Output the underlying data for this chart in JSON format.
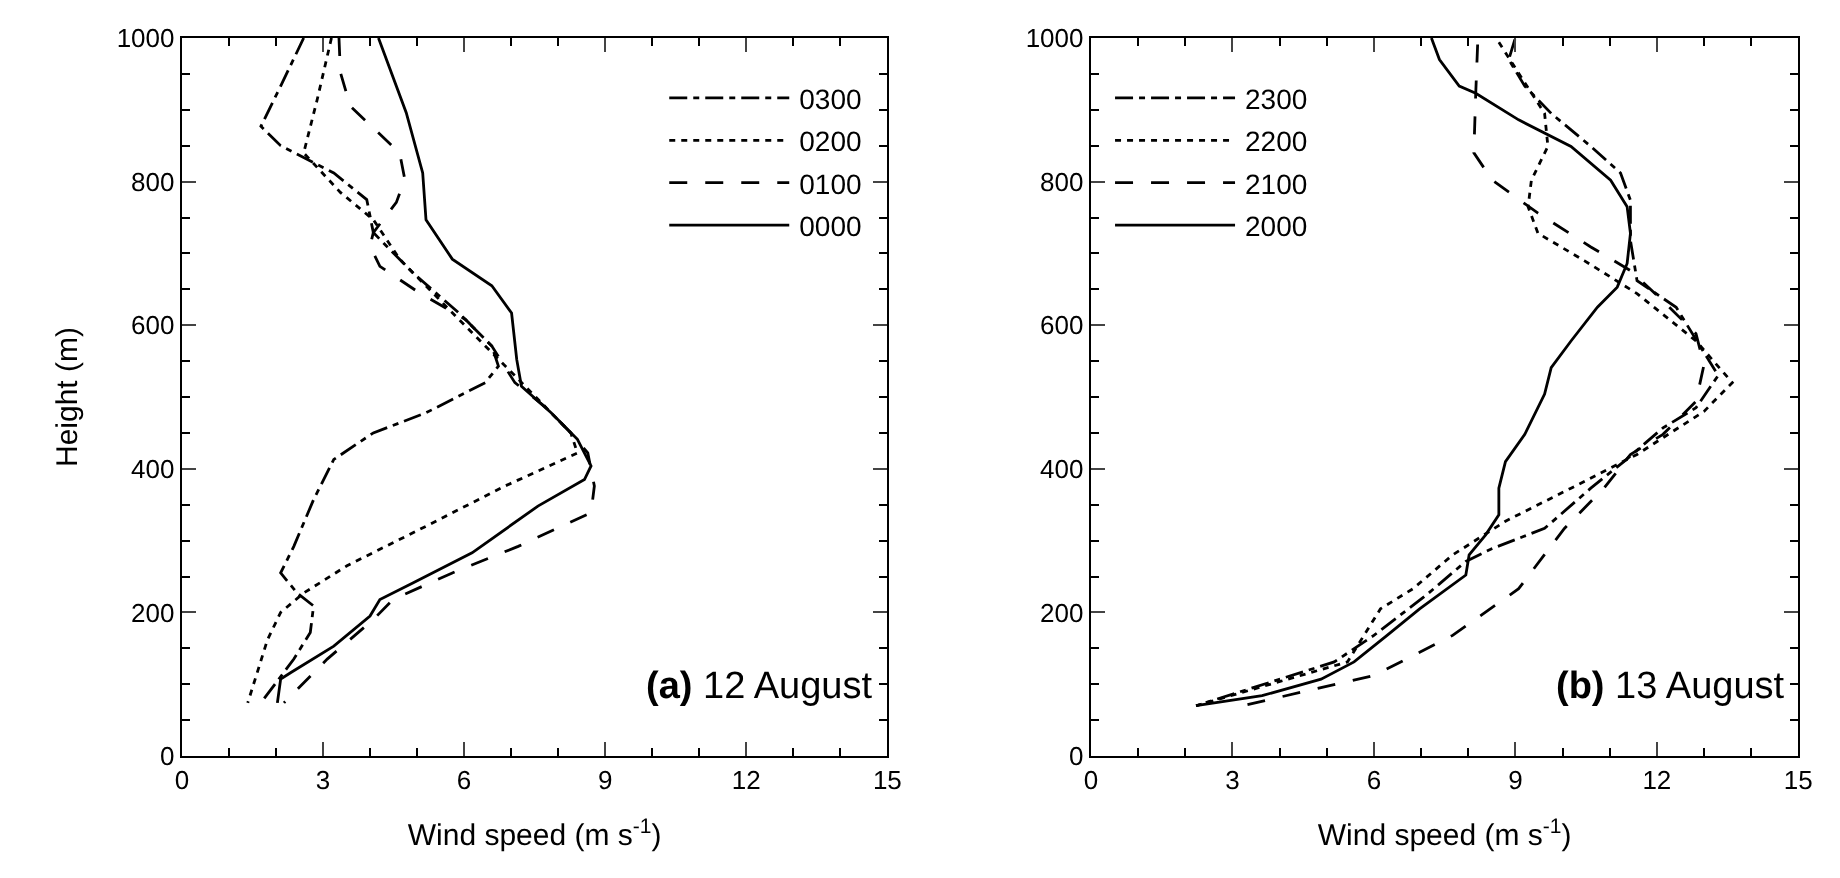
{
  "chart_data": [
    {
      "type": "line",
      "xlabel": "Wind speed (m s$^{-1}$)",
      "ylabel": "Height (m)",
      "xlim": [
        0,
        15
      ],
      "xticks": [
        0,
        3,
        6,
        9,
        12,
        15
      ],
      "ylim": [
        0,
        1000
      ],
      "yticks": [
        0,
        200,
        400,
        600,
        800,
        1000
      ],
      "grid": false,
      "legend": "top right",
      "marker": "none",
      "annotations": [
        "(a) 12 August"
      ],
      "series": [
        {
          "name": "0300",
          "color": "#000000",
          "line_style": "dashdot",
          "x": [
            2.59,
            2.1,
            1.68,
            2.1,
            3.23,
            3.93,
            4.07,
            4.91,
            5.89,
            6.59,
            6.73,
            6.45,
            5.19,
            4.07,
            3.23,
            2.8,
            2.38,
            2.1,
            2.45,
            2.8,
            2.73,
            2.38,
            1.68
          ],
          "values": [
            1000,
            933,
            877,
            850,
            812,
            775,
            729,
            673,
            617,
            571,
            543,
            520,
            478,
            450,
            413,
            357,
            292,
            255,
            227,
            209,
            172,
            135,
            74
          ]
        },
        {
          "name": "0200",
          "color": "#000000",
          "line_style": "dotted",
          "x": [
            3.18,
            2.88,
            2.59,
            3.37,
            4.07,
            4.63,
            5.47,
            6.45,
            7.15,
            7.85,
            8.27,
            8.41,
            6.87,
            5.19,
            3.51,
            2.59,
            2.1,
            1.82,
            1.4
          ],
          "values": [
            1000,
            915,
            840,
            785,
            747,
            692,
            636,
            571,
            525,
            478,
            450,
            422,
            376,
            320,
            265,
            227,
            200,
            162,
            74
          ]
        },
        {
          "name": "0100",
          "color": "#000000",
          "line_style": "dashed",
          "x": [
            3.34,
            3.37,
            3.58,
            4.63,
            4.74,
            4.56,
            4.07,
            4.0,
            4.21,
            5.05,
            6.03,
            6.59,
            7.08,
            7.71,
            8.27,
            8.63,
            8.77,
            8.7,
            7.15,
            5.75,
            4.49,
            4.07,
            3.09,
            2.17
          ],
          "values": [
            1000,
            952,
            905,
            840,
            803,
            771,
            729,
            710,
            682,
            645,
            608,
            571,
            520,
            487,
            450,
            422,
            376,
            339,
            292,
            255,
            218,
            190,
            135,
            74
          ]
        },
        {
          "name": "0000",
          "color": "#000000",
          "line_style": "solid",
          "x": [
            4.18,
            4.77,
            5.12,
            5.19,
            5.75,
            6.59,
            7.01,
            7.12,
            7.22,
            7.85,
            8.41,
            8.7,
            8.56,
            7.57,
            6.17,
            4.91,
            4.21,
            4.0,
            3.23,
            2.31,
            2.1,
            2.03
          ],
          "values": [
            1000,
            896,
            812,
            747,
            692,
            655,
            617,
            552,
            515,
            478,
            441,
            404,
            385,
            348,
            283,
            241,
            218,
            195,
            153,
            116,
            107,
            74
          ]
        }
      ]
    },
    {
      "type": "line",
      "xlabel": "Wind speed (m s$^{-1}$)",
      "xlim": [
        0,
        15
      ],
      "xticks": [
        0,
        3,
        6,
        9,
        12,
        15
      ],
      "ylim": [
        0,
        1000
      ],
      "yticks": [
        0,
        200,
        400,
        600,
        800,
        1000
      ],
      "grid": false,
      "legend": "top left",
      "marker": "none",
      "annotations": [
        "(b) 13 August"
      ],
      "series": [
        {
          "name": "2300",
          "color": "#000000",
          "line_style": "dashdot",
          "x": [
            8.99,
            8.86,
            9.2,
            9.76,
            10.6,
            11.23,
            11.44,
            11.44,
            11.58,
            12.41,
            13.3,
            12.83,
            12.13,
            11.3,
            10.6,
            9.62,
            8.51,
            7.95,
            7.11,
            6.0,
            5.16,
            2.23
          ],
          "values": [
            998,
            970,
            933,
            895,
            849,
            812,
            774,
            718,
            662,
            625,
            530,
            485,
            457,
            410,
            373,
            317,
            289,
            271,
            224,
            168,
            131,
            70
          ]
        },
        {
          "name": "2200",
          "color": "#000000",
          "line_style": "dotted",
          "x": [
            8.65,
            9.07,
            9.62,
            9.69,
            9.34,
            9.27,
            9.48,
            10.46,
            11.58,
            12.83,
            13.6,
            13.0,
            11.58,
            10.18,
            8.79,
            7.67,
            6.83,
            6.14,
            5.44,
            2.23
          ],
          "values": [
            994,
            951,
            895,
            849,
            802,
            765,
            728,
            690,
            644,
            578,
            520,
            480,
            420,
            373,
            327,
            280,
            233,
            205,
            131,
            70
          ]
        },
        {
          "name": "2100",
          "color": "#000000",
          "line_style": "dashed",
          "x": [
            8.2,
            8.16,
            8.12,
            8.51,
            9.48,
            10.6,
            11.44,
            12.13,
            12.83,
            13.0,
            12.83,
            12.13,
            11.44,
            10.88,
            10.04,
            9.07,
            7.67,
            6.0,
            3.21
          ],
          "values": [
            991,
            923,
            840,
            802,
            756,
            709,
            676,
            634,
            588,
            545,
            494,
            448,
            420,
            373,
            317,
            233,
            168,
            112,
            70
          ]
        },
        {
          "name": "2000",
          "color": "#000000",
          "line_style": "solid",
          "x": [
            7.22,
            7.39,
            7.81,
            8.16,
            9.07,
            10.18,
            11.02,
            11.37,
            11.44,
            11.37,
            11.16,
            10.74,
            10.18,
            9.76,
            9.62,
            9.2,
            8.79,
            8.65,
            8.65,
            8.37,
            8.02,
            7.95,
            6.97,
            6.28,
            5.58,
            4.88,
            3.63,
            2.23
          ],
          "values": [
            1000,
            970,
            933,
            923,
            886,
            849,
            802,
            765,
            728,
            686,
            653,
            625,
            578,
            541,
            504,
            448,
            410,
            373,
            336,
            308,
            280,
            252,
            205,
            168,
            131,
            107,
            84,
            70
          ]
        }
      ]
    }
  ]
}
